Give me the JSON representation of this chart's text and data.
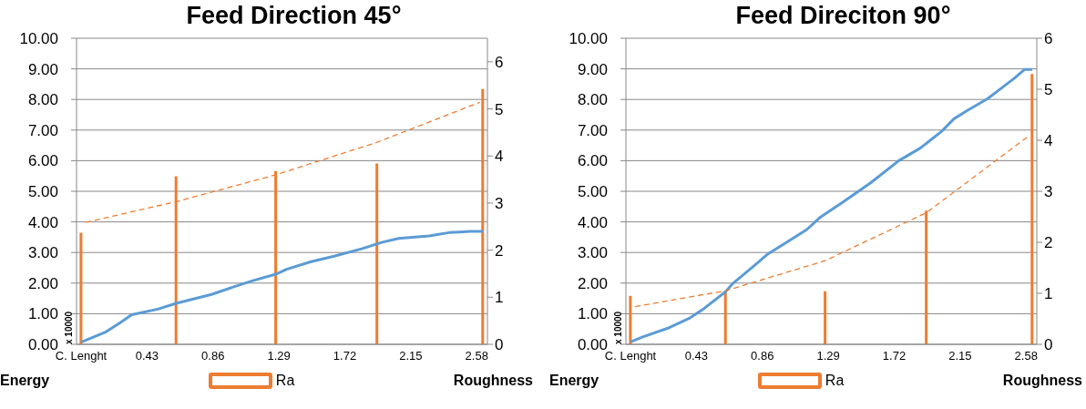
{
  "chart_data": [
    {
      "type": "line",
      "title": "Feed Direction 45°",
      "ylabel": "Energy",
      "y2label": "Roughness",
      "annotations": [
        "x 10000"
      ],
      "xlim": [
        -0.03,
        2.65
      ],
      "xticks": [
        {
          "value": 0,
          "label": "C. Lenght"
        },
        0.43,
        0.86,
        1.29,
        1.72,
        2.15,
        2.58
      ],
      "ylim": [
        0,
        10
      ],
      "yticks": [
        {
          "value": 0,
          "label": "0.00"
        },
        {
          "value": 1,
          "label": "1.00"
        },
        {
          "value": 2,
          "label": "2.00"
        },
        {
          "value": 3,
          "label": "3.00"
        },
        {
          "value": 4,
          "label": "4.00"
        },
        {
          "value": 5,
          "label": "5.00"
        },
        {
          "value": 6,
          "label": "6.00"
        },
        {
          "value": 7,
          "label": "7.00"
        },
        {
          "value": 8,
          "label": "8.00"
        },
        {
          "value": 9,
          "label": "9.00"
        },
        {
          "value": 10,
          "label": "10.00"
        }
      ],
      "y2lim": [
        0,
        6.5
      ],
      "y2ticks": [
        0,
        1,
        2,
        3,
        4,
        5,
        6
      ],
      "grid": "y",
      "legend": "bottom",
      "series": [
        {
          "type": "line",
          "color": "#5b9bd5",
          "x": [
            0,
            0.155,
            0.255,
            0.33,
            0.5,
            0.62,
            0.85,
            0.99,
            1.12,
            1.27,
            1.34,
            1.5,
            1.65,
            1.83,
            1.96,
            2.07,
            2.27,
            2.4,
            2.54,
            2.62
          ],
          "values": [
            0.07,
            0.39,
            0.71,
            0.97,
            1.15,
            1.34,
            1.63,
            1.87,
            2.08,
            2.29,
            2.45,
            2.7,
            2.88,
            3.12,
            3.33,
            3.46,
            3.54,
            3.65,
            3.69,
            3.69
          ]
        },
        {
          "type": "bar",
          "name": "Ra",
          "color": "#ed7d31",
          "axis": "y2",
          "x": [
            0,
            0.62,
            1.27,
            1.93,
            2.62
          ],
          "values": [
            2.37,
            3.57,
            3.68,
            3.84,
            5.42
          ]
        },
        {
          "color": "#ed7d31",
          "axis": "y2",
          "line_style": "dashed",
          "x": [
            0.03,
            0.62,
            1.27,
            1.93,
            2.6
          ],
          "values": [
            2.59,
            3.03,
            3.6,
            4.29,
            5.14
          ]
        }
      ]
    },
    {
      "type": "line",
      "title": "Feed Direciton 90°",
      "ylabel": "Energy",
      "y2label": "Roughness",
      "annotations": [
        "x 10000"
      ],
      "xlim": [
        -0.03,
        2.65
      ],
      "xticks": [
        {
          "value": 0,
          "label": "C. Lenght"
        },
        0.43,
        0.86,
        1.29,
        1.72,
        2.15,
        2.58
      ],
      "ylim": [
        0,
        10
      ],
      "yticks": [
        {
          "value": 0,
          "label": "0.00"
        },
        {
          "value": 1,
          "label": "1.00"
        },
        {
          "value": 2,
          "label": "2.00"
        },
        {
          "value": 3,
          "label": "3.00"
        },
        {
          "value": 4,
          "label": "4.00"
        },
        {
          "value": 5,
          "label": "5.00"
        },
        {
          "value": 6,
          "label": "6.00"
        },
        {
          "value": 7,
          "label": "7.00"
        },
        {
          "value": 8,
          "label": "8.00"
        },
        {
          "value": 9,
          "label": "9.00"
        },
        {
          "value": 10,
          "label": "10.00"
        }
      ],
      "y2lim": [
        0,
        6
      ],
      "y2ticks": [
        0,
        1,
        2,
        3,
        4,
        5,
        6
      ],
      "grid": "y",
      "legend": "bottom",
      "series": [
        {
          "type": "line",
          "color": "#5b9bd5",
          "x": [
            0,
            0.08,
            0.24,
            0.39,
            0.48,
            0.62,
            0.67,
            0.8,
            0.89,
            1.03,
            1.15,
            1.24,
            1.38,
            1.57,
            1.75,
            1.89,
            2.03,
            2.11,
            2.19,
            2.33,
            2.43,
            2.5,
            2.57,
            2.62
          ],
          "values": [
            0.08,
            0.24,
            0.52,
            0.87,
            1.17,
            1.72,
            2.0,
            2.54,
            2.93,
            3.37,
            3.75,
            4.16,
            4.63,
            5.29,
            6.0,
            6.41,
            6.96,
            7.37,
            7.62,
            8.03,
            8.41,
            8.68,
            8.98,
            8.98
          ]
        },
        {
          "type": "bar",
          "name": "Ra",
          "color": "#ed7d31",
          "axis": "y2",
          "x": [
            0,
            0.62,
            1.27,
            1.93,
            2.62
          ],
          "values": [
            0.95,
            1.05,
            1.04,
            2.62,
            5.3
          ]
        },
        {
          "color": "#ed7d31",
          "axis": "y2",
          "line_style": "dashed",
          "x": [
            0.03,
            0.62,
            1.27,
            1.93,
            2.6
          ],
          "values": [
            0.74,
            1.05,
            1.64,
            2.58,
            4.09
          ]
        }
      ]
    }
  ]
}
